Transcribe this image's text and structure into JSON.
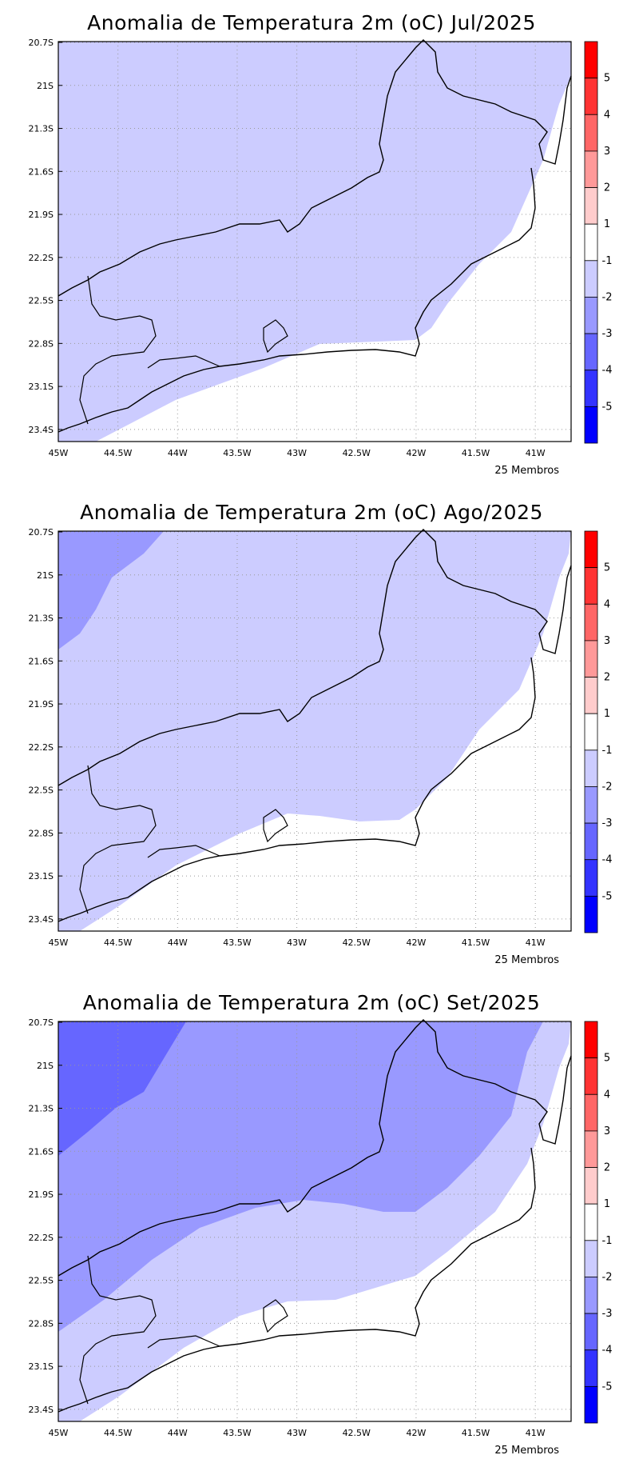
{
  "panels": [
    {
      "title": "Anomalia de Temperatura 2m (oC) Jul/2025",
      "footer": "25 Membros"
    },
    {
      "title": "Anomalia de Temperatura 2m (oC) Ago/2025",
      "footer": "25 Membros"
    },
    {
      "title": "Anomalia de Temperatura 2m (oC) Set/2025",
      "footer": "25 Membros"
    }
  ],
  "lat_labels": [
    "20.7S",
    "21S",
    "21.3S",
    "21.6S",
    "21.9S",
    "22.2S",
    "22.5S",
    "22.8S",
    "23.1S",
    "23.4S"
  ],
  "lon_labels": [
    "45W",
    "44.5W",
    "44W",
    "43.5W",
    "43W",
    "42.5W",
    "42W",
    "41.5W",
    "41W"
  ],
  "colorbar": {
    "labels": [
      "5",
      "4",
      "3",
      "2",
      "1",
      "-1",
      "-2",
      "-3",
      "-4",
      "-5"
    ],
    "colors": [
      "#ff0000",
      "#ff3333",
      "#ff6666",
      "#ff9999",
      "#ffcccc",
      "#ffffff",
      "#ccccff",
      "#9999ff",
      "#6666ff",
      "#3333ff",
      "#0000ff"
    ]
  },
  "anomaly_classes": {
    "-1_to_1": "#ffffff",
    "-2_to_-1": "#ccccff",
    "-3_to_-2": "#9999ff",
    "-4_to_-3": "#6666ff"
  }
}
